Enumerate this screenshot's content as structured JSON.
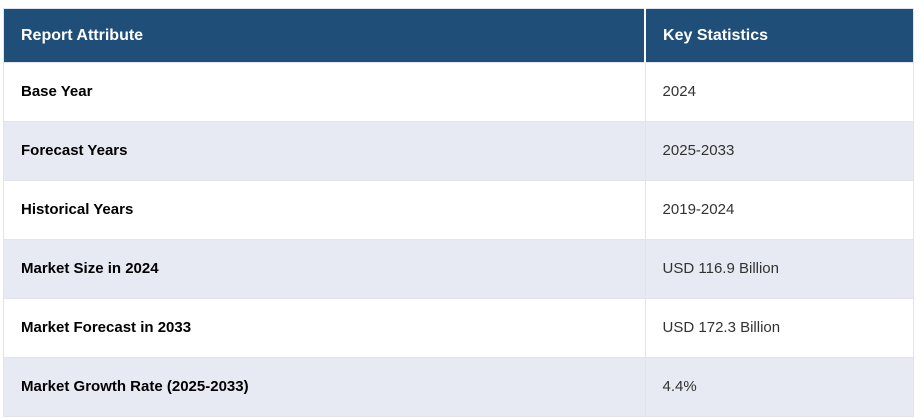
{
  "table": {
    "columns": [
      {
        "label": "Report Attribute"
      },
      {
        "label": "Key Statistics"
      }
    ],
    "rows": [
      {
        "attribute": "Base Year",
        "value": "2024"
      },
      {
        "attribute": "Forecast Years",
        "value": "2025-2033"
      },
      {
        "attribute": "Historical Years",
        "value": "2019-2024"
      },
      {
        "attribute": "Market Size in 2024",
        "value": "USD 116.9 Billion"
      },
      {
        "attribute": "Market Forecast in 2033",
        "value": "USD 172.3 Billion"
      },
      {
        "attribute": "Market Growth Rate (2025-2033)",
        "value": "4.4%"
      }
    ],
    "colors": {
      "header_bg": "#1f4e79",
      "header_text": "#ffffff",
      "row_bg": "#ffffff",
      "row_alt_bg": "#e8eaf3",
      "border": "#e2e3ec",
      "label_text": "#000000",
      "value_text": "#323232"
    }
  }
}
